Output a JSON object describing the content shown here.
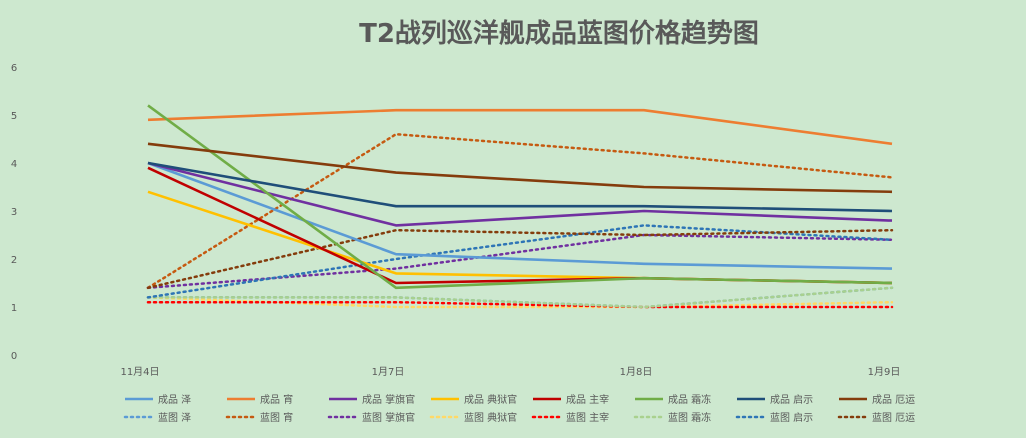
{
  "chart_data": {
    "type": "line",
    "title": "T2战列巡洋舰成品蓝图价格趋势图",
    "xlabel": "",
    "ylabel": "",
    "categories": [
      "11月4日",
      "1月7日",
      "1月8日",
      "1月9日"
    ],
    "yticks": [
      "0",
      "1",
      "2",
      "3",
      "4",
      "5",
      "6"
    ],
    "ylim": [
      0,
      6
    ],
    "grid": false,
    "legend_position": "bottom",
    "series": [
      {
        "name": "成品 泽",
        "color": "#5b9bd5",
        "dash": false,
        "values": [
          4.0,
          2.1,
          1.9,
          1.8
        ]
      },
      {
        "name": "成品 宵",
        "color": "#ed7d31",
        "dash": false,
        "values": [
          4.9,
          5.1,
          5.1,
          4.4
        ]
      },
      {
        "name": "成品 掌旗官",
        "color": "#7030a0",
        "dash": false,
        "values": [
          4.0,
          2.7,
          3.0,
          2.8
        ]
      },
      {
        "name": "成品 典狱官",
        "color": "#ffc000",
        "dash": false,
        "values": [
          3.4,
          1.7,
          1.6,
          1.5
        ]
      },
      {
        "name": "成品 主宰",
        "color": "#c00000",
        "dash": false,
        "values": [
          3.9,
          1.5,
          1.6,
          1.5
        ]
      },
      {
        "name": "成品 霜冻",
        "color": "#70ad47",
        "dash": false,
        "values": [
          5.2,
          1.4,
          1.6,
          1.5
        ]
      },
      {
        "name": "成品 启示",
        "color": "#1f4e79",
        "dash": false,
        "values": [
          4.0,
          3.1,
          3.1,
          3.0
        ]
      },
      {
        "name": "成品 厄运",
        "color": "#843c0c",
        "dash": false,
        "values": [
          4.4,
          3.8,
          3.5,
          3.4
        ]
      },
      {
        "name": "蓝图 泽",
        "color": "#5b9bd5",
        "dash": true,
        "values": [
          1.2,
          1.2,
          1.0,
          1.4
        ]
      },
      {
        "name": "蓝图 宵",
        "color": "#c55a11",
        "dash": true,
        "values": [
          1.4,
          4.6,
          4.2,
          3.7
        ]
      },
      {
        "name": "蓝图 掌旗官",
        "color": "#7030a0",
        "dash": true,
        "values": [
          1.4,
          1.8,
          2.5,
          2.4
        ]
      },
      {
        "name": "蓝图 典狱官",
        "color": "#ffd966",
        "dash": true,
        "values": [
          1.2,
          1.0,
          1.0,
          1.1
        ]
      },
      {
        "name": "蓝图 主宰",
        "color": "#ff0000",
        "dash": true,
        "values": [
          1.1,
          1.1,
          1.0,
          1.0
        ]
      },
      {
        "name": "蓝图 霜冻",
        "color": "#a9d18e",
        "dash": true,
        "values": [
          1.2,
          1.2,
          1.0,
          1.4
        ]
      },
      {
        "name": "蓝图 启示",
        "color": "#2e75b6",
        "dash": true,
        "values": [
          1.2,
          2.0,
          2.7,
          2.4
        ]
      },
      {
        "name": "蓝图 厄运",
        "color": "#843c0c",
        "dash": true,
        "values": [
          1.4,
          2.6,
          2.5,
          2.6
        ]
      }
    ]
  }
}
